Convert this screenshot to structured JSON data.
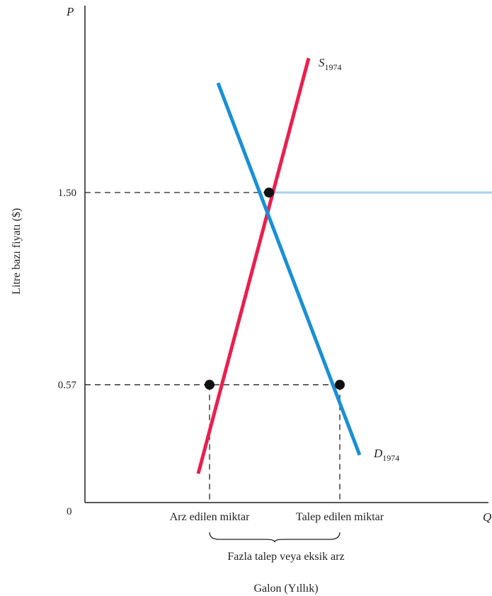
{
  "chart_data": {
    "type": "line",
    "ylabel": "Litre bazı fiyatı ($)",
    "y_axis_letter": "P",
    "x_axis_letter": "Q",
    "origin_label": "0",
    "xlabel": "Galon (Yıllık)",
    "y_ticks": [
      {
        "value": 1.5,
        "label": "1.50"
      },
      {
        "value": 0.57,
        "label": "0.57"
      }
    ],
    "x_ticks": [
      {
        "key": "qs",
        "label": "Arz edilen miktar"
      },
      {
        "key": "qd",
        "label": "Talep edilen miktar"
      }
    ],
    "brace_label": "Fazla talep veya eksik arz",
    "series": [
      {
        "name_main": "S",
        "name_sub": "1974",
        "color": "#e8204f",
        "points": [
          {
            "q": 0.4,
            "p": 0.14
          },
          {
            "q": 0.79,
            "p": 2.15
          }
        ]
      },
      {
        "name_main": "D",
        "name_sub": "1974",
        "color": "#1a8fd4",
        "points": [
          {
            "q": 0.47,
            "p": 2.03
          },
          {
            "q": 0.97,
            "p": 0.23
          }
        ]
      }
    ],
    "equilibrium": {
      "q": 0.65,
      "p": 1.5
    },
    "controlled": {
      "p": 0.57,
      "qs": 0.44,
      "qd": 0.9
    },
    "ceiling_line_color": "#a9d1ee",
    "point_color": "#111111",
    "ylim": [
      0,
      2.3
    ],
    "xlim": [
      0,
      1.4
    ]
  }
}
